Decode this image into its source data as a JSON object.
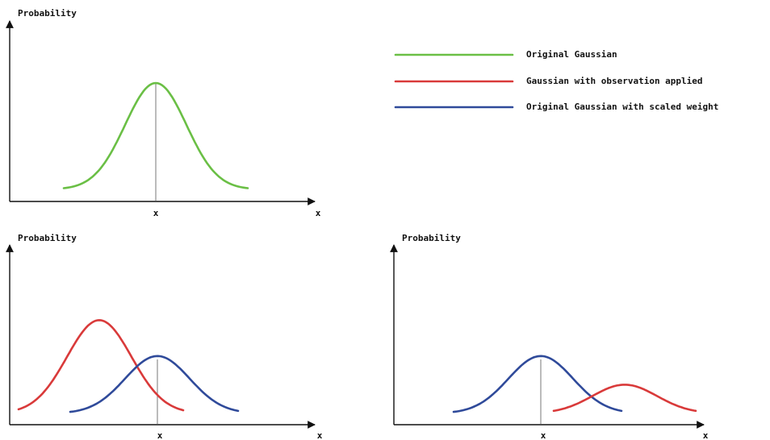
{
  "legend": {
    "items": [
      {
        "label": "Original Gaussian",
        "color": "#6abf45"
      },
      {
        "label": "Gaussian with observation applied",
        "color": "#d93a3a"
      },
      {
        "label": "Original Gaussian with scaled weight",
        "color": "#2f4a9a"
      }
    ]
  },
  "axis_labels": {
    "y": "Probability",
    "x": "x",
    "mean_tick": "x"
  },
  "panels": [
    {
      "id": "top-left",
      "curves": [
        {
          "series": 0,
          "mu": 0.0,
          "sigma": 1.0,
          "peak": 1.0,
          "range": [
            -3.0,
            3.0
          ]
        }
      ]
    },
    {
      "id": "bottom-left",
      "curves": [
        {
          "series": 1,
          "mu": -1.8,
          "sigma": 1.0,
          "peak": 1.3,
          "range": [
            -4.3,
            0.8
          ]
        },
        {
          "series": 2,
          "mu": 0.0,
          "sigma": 1.0,
          "peak": 0.8,
          "range": [
            -2.7,
            2.5
          ]
        }
      ]
    },
    {
      "id": "bottom-right",
      "curves": [
        {
          "series": 2,
          "mu": 0.0,
          "sigma": 1.0,
          "peak": 0.8,
          "range": [
            -2.7,
            2.5
          ]
        },
        {
          "series": 1,
          "mu": 2.6,
          "sigma": 1.0,
          "peak": 0.4,
          "range": [
            0.4,
            4.8
          ]
        }
      ]
    }
  ]
}
